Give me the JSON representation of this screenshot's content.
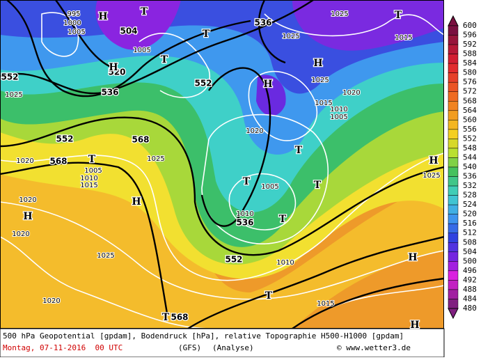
{
  "footer": {
    "description": "500 hPa Geopotential [gpdam], Bodendruck [hPa], relative Topographie H500-H1000 [gpdam]",
    "date": "Montag, 07-11-2016  00 UTC",
    "model": "(GFS)",
    "run": "(Analyse)",
    "credit": "© www.wetter3.de"
  },
  "colorbar": {
    "labels": [
      "600",
      "596",
      "592",
      "588",
      "584",
      "580",
      "576",
      "572",
      "568",
      "564",
      "560",
      "556",
      "552",
      "548",
      "544",
      "540",
      "536",
      "532",
      "528",
      "524",
      "520",
      "516",
      "512",
      "508",
      "504",
      "500",
      "496",
      "492",
      "488",
      "484",
      "480"
    ]
  },
  "contour_labels": [
    "552",
    "552",
    "536",
    "536",
    "504",
    "520",
    "552",
    "568",
    "568",
    "552",
    "536",
    "568"
  ],
  "pressure_labels": [
    "1025",
    "1025",
    "1025",
    "1020",
    "1015",
    "1010",
    "1005",
    "1020",
    "1005",
    "1010",
    "1025",
    "1020",
    "1020",
    "1020",
    "1025",
    "1020",
    "1015",
    "1010",
    "1005",
    "1010",
    "1015",
    "995",
    "1000",
    "1005",
    "1005",
    "1015",
    "1025",
    "1025"
  ],
  "centers": [
    "H",
    "T",
    "T",
    "T",
    "H",
    "H",
    "H",
    "T",
    "T",
    "H",
    "H",
    "T",
    "T",
    "T",
    "T",
    "T",
    "H",
    "H",
    "H",
    "T"
  ]
}
